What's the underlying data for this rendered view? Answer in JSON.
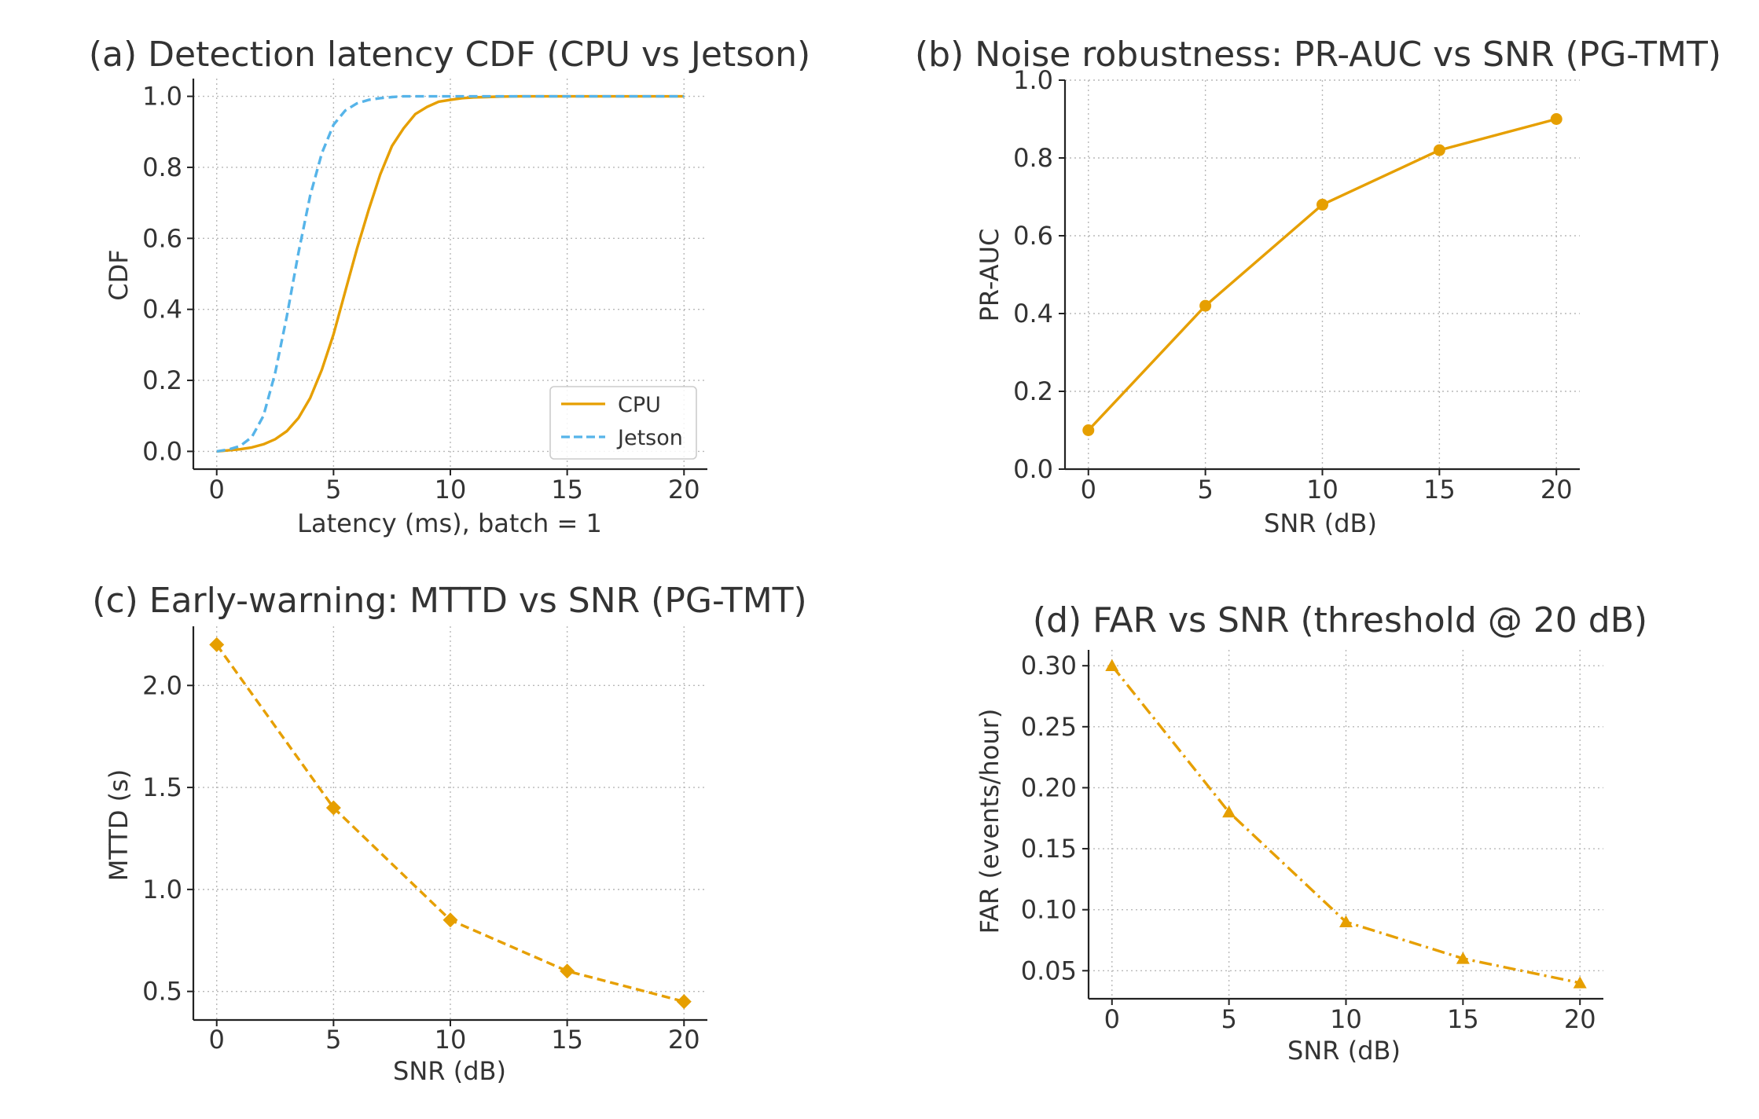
{
  "chart_data": [
    {
      "type": "line",
      "title": "(a) Detection latency CDF (CPU vs Jetson)",
      "xlabel": "Latency (ms), batch = 1",
      "ylabel": "CDF",
      "xlim": [
        -1,
        21
      ],
      "ylim": [
        -0.05,
        1.05
      ],
      "xticks": [
        0,
        5,
        10,
        15,
        20
      ],
      "yticks": [
        0.0,
        0.2,
        0.4,
        0.6,
        0.8,
        1.0
      ],
      "tick_decimals_x": 0,
      "tick_decimals_y": 1,
      "grid": true,
      "legend": "lower-right",
      "series": [
        {
          "name": "CPU",
          "color": "#E69F00",
          "style": "solid",
          "x": [
            0,
            0.5,
            1,
            1.5,
            2,
            2.5,
            3,
            3.5,
            4,
            4.5,
            5,
            5.5,
            6,
            6.5,
            7,
            7.5,
            8,
            8.5,
            9,
            9.5,
            10,
            10.5,
            11,
            11.5,
            12,
            13,
            14,
            15,
            16,
            17,
            18,
            19,
            20
          ],
          "y": [
            0.0,
            0.003,
            0.006,
            0.011,
            0.02,
            0.034,
            0.057,
            0.094,
            0.15,
            0.23,
            0.33,
            0.45,
            0.57,
            0.68,
            0.78,
            0.86,
            0.91,
            0.95,
            0.97,
            0.985,
            0.99,
            0.995,
            0.997,
            0.998,
            0.999,
            1.0,
            1.0,
            1.0,
            1.0,
            1.0,
            1.0,
            1.0,
            1.0
          ]
        },
        {
          "name": "Jetson",
          "color": "#56B4E9",
          "style": "dashed",
          "x": [
            0,
            0.5,
            1,
            1.5,
            2,
            2.5,
            3,
            3.5,
            4,
            4.5,
            5,
            5.5,
            6,
            6.5,
            7,
            7.5,
            8,
            9,
            10,
            11,
            12,
            13,
            14,
            15,
            16,
            17,
            18,
            19,
            20
          ],
          "y": [
            0.0,
            0.005,
            0.015,
            0.04,
            0.1,
            0.22,
            0.38,
            0.56,
            0.72,
            0.84,
            0.92,
            0.96,
            0.98,
            0.99,
            0.995,
            0.998,
            1.0,
            1.0,
            1.0,
            1.0,
            1.0,
            1.0,
            1.0,
            1.0,
            1.0,
            1.0,
            1.0,
            1.0,
            1.0
          ]
        }
      ]
    },
    {
      "type": "line",
      "title": "(b) Noise robustness: PR-AUC vs SNR (PG-TMT)",
      "xlabel": "SNR (dB)",
      "ylabel": "PR-AUC",
      "xlim": [
        -1,
        21
      ],
      "ylim": [
        0.0,
        1.0
      ],
      "xticks": [
        0,
        5,
        10,
        15,
        20
      ],
      "yticks": [
        0.0,
        0.2,
        0.4,
        0.6,
        0.8,
        1.0
      ],
      "tick_decimals_x": 0,
      "tick_decimals_y": 1,
      "grid": true,
      "series": [
        {
          "color": "#E69F00",
          "style": "solid",
          "marker": "circle",
          "x": [
            0,
            5,
            10,
            15,
            20
          ],
          "y": [
            0.1,
            0.42,
            0.68,
            0.82,
            0.9
          ]
        }
      ]
    },
    {
      "type": "line",
      "title": "(c) Early-warning: MTTD vs SNR (PG-TMT)",
      "xlabel": "SNR (dB)",
      "ylabel": "MTTD (s)",
      "xlim": [
        -1,
        21
      ],
      "ylim": [
        0.36,
        2.29
      ],
      "xticks": [
        0,
        5,
        10,
        15,
        20
      ],
      "yticks": [
        0.5,
        1.0,
        1.5,
        2.0
      ],
      "tick_decimals_x": 0,
      "tick_decimals_y": 1,
      "grid": true,
      "series": [
        {
          "color": "#E69F00",
          "style": "dashed",
          "marker": "diamond",
          "x": [
            0,
            5,
            10,
            15,
            20
          ],
          "y": [
            2.2,
            1.4,
            0.85,
            0.6,
            0.45
          ]
        }
      ]
    },
    {
      "type": "line",
      "title": "(d) FAR vs SNR (threshold @ 20 dB)",
      "xlabel": "SNR (dB)",
      "ylabel": "FAR (events/hour)",
      "xlim": [
        -1,
        21
      ],
      "ylim": [
        0.027,
        0.313
      ],
      "xticks": [
        0,
        5,
        10,
        15,
        20
      ],
      "yticks": [
        0.05,
        0.1,
        0.15,
        0.2,
        0.25,
        0.3
      ],
      "tick_decimals_x": 0,
      "tick_decimals_y": 2,
      "grid": true,
      "series": [
        {
          "color": "#E69F00",
          "style": "dashdot",
          "marker": "triangle",
          "x": [
            0,
            5,
            10,
            15,
            20
          ],
          "y": [
            0.3,
            0.18,
            0.09,
            0.06,
            0.04
          ]
        }
      ]
    }
  ]
}
